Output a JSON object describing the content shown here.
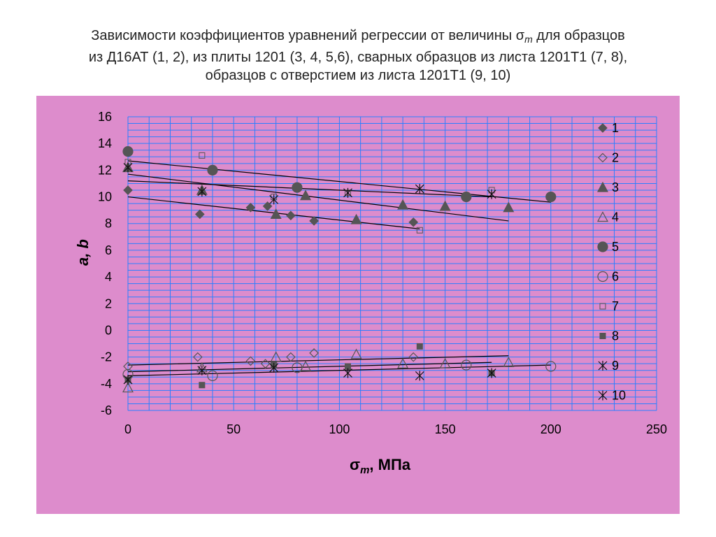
{
  "title": {
    "line1_pre": "Зависимости коэффициентов уравнений регрессии от величины σ",
    "line1_sub": "m",
    "line1_post": " для образцов",
    "line2": "из Д16АТ (1, 2), из плиты 1201 (3, 4, 5,6), сварных образцов из листа 1201Т1 (7, 8),",
    "line3": "образцов с отверстием из листа 1201Т1 (9, 10)"
  },
  "colors": {
    "panel": "#dd8ccc",
    "grid": "#2a7fff",
    "marker": "#555555"
  },
  "chart_data": {
    "type": "scatter",
    "xlabel_main": "σ",
    "xlabel_sub": "m",
    "xlabel_unit": ", МПа",
    "ylabel": "a, b",
    "xlim": [
      0,
      250
    ],
    "ylim": [
      -6,
      16
    ],
    "x_ticks": [
      0,
      50,
      100,
      150,
      200,
      250
    ],
    "x_tick_labels": [
      "0",
      "50",
      "100",
      "150",
      "200",
      "250"
    ],
    "y_ticks": [
      -6,
      -4,
      -2,
      0,
      2,
      4,
      6,
      8,
      10,
      12,
      14,
      16
    ],
    "y_tick_labels": [
      "-6",
      "-4",
      "-2",
      "0",
      "2",
      "4",
      "6",
      "8",
      "10",
      "12",
      "14",
      "16"
    ],
    "grid": true,
    "legend_position": "right",
    "series": [
      {
        "name": "1",
        "marker": "diamond-filled",
        "points": [
          [
            0,
            10.5
          ],
          [
            34,
            8.7
          ],
          [
            58,
            9.2
          ],
          [
            66,
            9.3
          ],
          [
            77,
            8.6
          ],
          [
            88,
            8.2
          ],
          [
            135,
            8.1
          ]
        ]
      },
      {
        "name": "2",
        "marker": "diamond-open",
        "points": [
          [
            0,
            -2.7
          ],
          [
            33,
            -2.0
          ],
          [
            58,
            -2.3
          ],
          [
            65,
            -2.5
          ],
          [
            77,
            -2.0
          ],
          [
            88,
            -1.7
          ],
          [
            135,
            -2.0
          ]
        ]
      },
      {
        "name": "3",
        "marker": "triangle-filled",
        "points": [
          [
            0,
            12.2
          ],
          [
            35,
            10.5
          ],
          [
            70,
            8.7
          ],
          [
            84,
            10.1
          ],
          [
            108,
            8.3
          ],
          [
            130,
            9.4
          ],
          [
            150,
            9.3
          ],
          [
            180,
            9.2
          ]
        ]
      },
      {
        "name": "4",
        "marker": "triangle-open",
        "points": [
          [
            0,
            -4.3
          ],
          [
            35,
            -2.8
          ],
          [
            70,
            -2.0
          ],
          [
            84,
            -2.7
          ],
          [
            108,
            -1.8
          ],
          [
            130,
            -2.5
          ],
          [
            150,
            -2.5
          ],
          [
            180,
            -2.4
          ]
        ]
      },
      {
        "name": "5",
        "marker": "circle-filled",
        "points": [
          [
            0,
            13.4
          ],
          [
            40,
            12.0
          ],
          [
            80,
            10.7
          ],
          [
            160,
            10.0
          ],
          [
            200,
            10.0
          ]
        ]
      },
      {
        "name": "6",
        "marker": "circle-open",
        "points": [
          [
            0,
            -3.3
          ],
          [
            40,
            -3.4
          ],
          [
            80,
            -2.8
          ],
          [
            160,
            -2.6
          ],
          [
            200,
            -2.7
          ]
        ]
      },
      {
        "name": "7",
        "marker": "square-open",
        "points": [
          [
            0,
            12.6
          ],
          [
            35,
            13.1
          ],
          [
            69,
            10.0
          ],
          [
            104,
            10.3
          ],
          [
            138,
            7.5
          ],
          [
            172,
            10.5
          ]
        ]
      },
      {
        "name": "8",
        "marker": "square-filled",
        "points": [
          [
            0,
            -3.7
          ],
          [
            35,
            -4.1
          ],
          [
            69,
            -2.6
          ],
          [
            104,
            -2.7
          ],
          [
            138,
            -1.2
          ],
          [
            172,
            -3.2
          ]
        ]
      },
      {
        "name": "9",
        "marker": "star",
        "points": [
          [
            0,
            12.2
          ],
          [
            35,
            10.4
          ],
          [
            69,
            9.8
          ],
          [
            104,
            10.3
          ],
          [
            138,
            10.6
          ],
          [
            172,
            10.2
          ]
        ]
      },
      {
        "name": "10",
        "marker": "star",
        "points": [
          [
            0,
            -3.7
          ],
          [
            35,
            -3.0
          ],
          [
            69,
            -2.8
          ],
          [
            104,
            -3.2
          ],
          [
            138,
            -3.4
          ],
          [
            172,
            -3.2
          ]
        ]
      }
    ],
    "trendlines": [
      {
        "from": [
          0,
          12.7
        ],
        "to": [
          200,
          9.6
        ]
      },
      {
        "from": [
          0,
          11.7
        ],
        "to": [
          180,
          8.2
        ]
      },
      {
        "from": [
          0,
          11.2
        ],
        "to": [
          172,
          10.0
        ]
      },
      {
        "from": [
          0,
          10.0
        ],
        "to": [
          138,
          7.6
        ]
      },
      {
        "from": [
          0,
          -2.6
        ],
        "to": [
          180,
          -1.9
        ]
      },
      {
        "from": [
          0,
          -3.1
        ],
        "to": [
          172,
          -2.4
        ]
      },
      {
        "from": [
          0,
          -3.4
        ],
        "to": [
          200,
          -2.6
        ]
      }
    ]
  }
}
